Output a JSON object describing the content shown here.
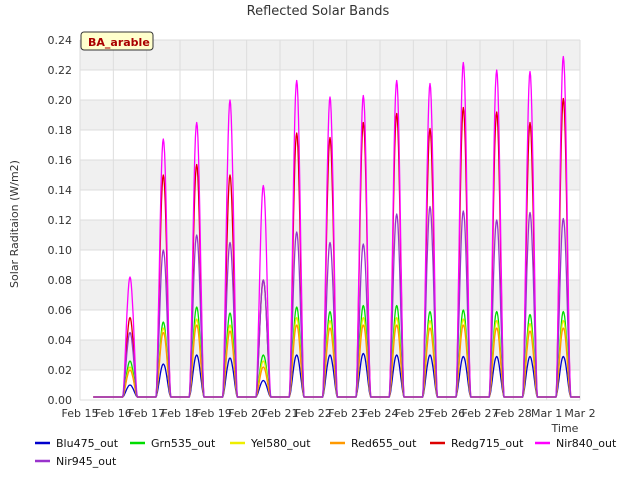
{
  "chart_data": {
    "type": "line",
    "title": "Reflected Solar Bands",
    "xlabel": "Time",
    "ylabel": "Solar Raditaion (W/m2)",
    "annotation": "BA_arable",
    "ylim": [
      0,
      0.24
    ],
    "y_ticks": [
      "0.00",
      "0.02",
      "0.04",
      "0.06",
      "0.08",
      "0.10",
      "0.12",
      "0.14",
      "0.16",
      "0.18",
      "0.20",
      "0.22",
      "0.24"
    ],
    "x_ticks": [
      "Feb 15",
      "Feb 16",
      "Feb 17",
      "Feb 18",
      "Feb 19",
      "Feb 20",
      "Feb 21",
      "Feb 22",
      "Feb 23",
      "Feb 24",
      "Feb 25",
      "Feb 26",
      "Feb 27",
      "Feb 28",
      "Mar 1",
      "Mar 2"
    ],
    "x": [
      "Feb 16",
      "Feb 17",
      "Feb 18",
      "Feb 19",
      "Feb 20",
      "Feb 21",
      "Feb 22",
      "Feb 23",
      "Feb 24",
      "Feb 25",
      "Feb 26",
      "Feb 27",
      "Feb 28",
      "Mar 1"
    ],
    "series": [
      {
        "name": "Blu475_out",
        "color": "#0000cc",
        "values": [
          0.01,
          0.024,
          0.03,
          0.028,
          0.013,
          0.03,
          0.03,
          0.031,
          0.03,
          0.03,
          0.029,
          0.029,
          0.029,
          0.029
        ]
      },
      {
        "name": "Grn535_out",
        "color": "#00dd00",
        "values": [
          0.026,
          0.052,
          0.062,
          0.058,
          0.03,
          0.062,
          0.059,
          0.063,
          0.063,
          0.059,
          0.06,
          0.059,
          0.057,
          0.059
        ]
      },
      {
        "name": "Yel580_out",
        "color": "#eeee00",
        "values": [
          0.022,
          0.048,
          0.054,
          0.05,
          0.026,
          0.055,
          0.053,
          0.055,
          0.055,
          0.053,
          0.054,
          0.053,
          0.051,
          0.053
        ]
      },
      {
        "name": "Red655_out",
        "color": "#ff9900",
        "values": [
          0.02,
          0.045,
          0.05,
          0.046,
          0.022,
          0.05,
          0.048,
          0.05,
          0.05,
          0.048,
          0.05,
          0.048,
          0.046,
          0.048
        ]
      },
      {
        "name": "Redg715_out",
        "color": "#dd0000",
        "values": [
          0.055,
          0.15,
          0.157,
          0.15,
          0.08,
          0.178,
          0.175,
          0.185,
          0.191,
          0.181,
          0.195,
          0.192,
          0.185,
          0.201
        ]
      },
      {
        "name": "Nir840_out",
        "color": "#ff00ff",
        "values": [
          0.082,
          0.174,
          0.185,
          0.2,
          0.143,
          0.213,
          0.202,
          0.203,
          0.213,
          0.211,
          0.225,
          0.22,
          0.219,
          0.229
        ]
      },
      {
        "name": "Nir945_out",
        "color": "#9933cc",
        "values": [
          0.045,
          0.1,
          0.11,
          0.105,
          0.08,
          0.112,
          0.105,
          0.104,
          0.124,
          0.129,
          0.126,
          0.12,
          0.125,
          0.121
        ]
      }
    ],
    "grid": true,
    "legend_position": "bottom"
  }
}
